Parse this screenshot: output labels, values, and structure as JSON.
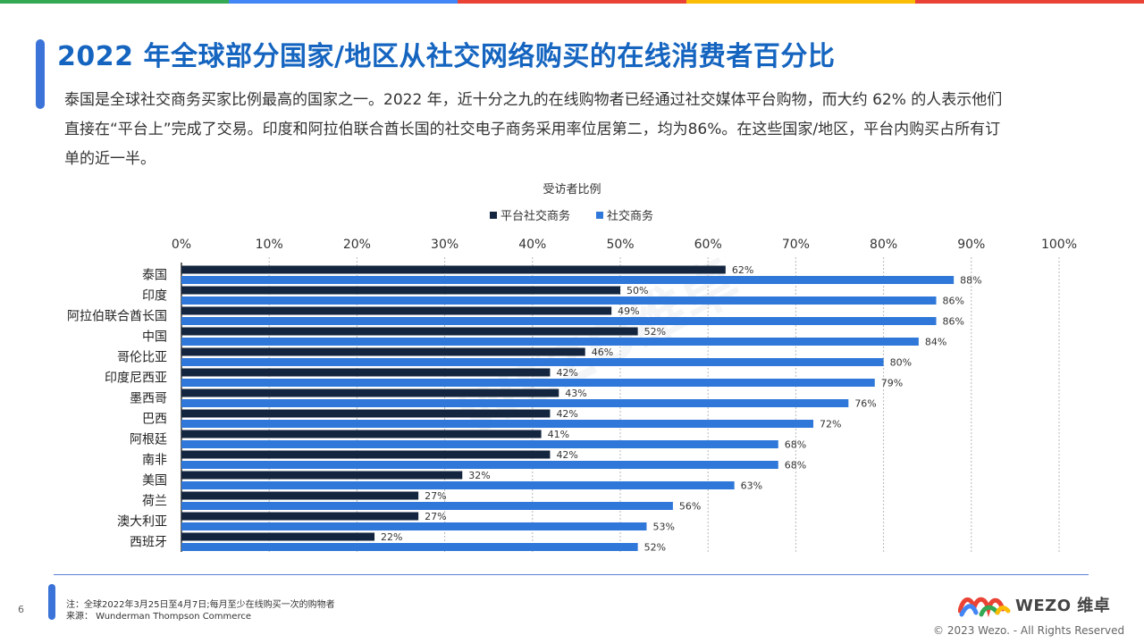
{
  "header": {
    "title": "2022 年全球部分国家/地区从社交网络购买的在线消费者百分比",
    "description": "泰国是全球社交商务买家比例最高的国家之一。2022 年，近十分之九的在线购物者已经通过社交媒体平台购物，而大约 62% 的人表示他们直接在“平台上”完成了交易。印度和阿拉伯联合酋长国的社交电子商务采用率位居第二，均为86%。在这些国家/地区，平台内购买占所有订单的近一半。"
  },
  "colors": {
    "top_bar": [
      "#34a853",
      "#4285f4",
      "#ea4335",
      "#fbbc05",
      "#ea4335"
    ],
    "accent": "#3b73d9",
    "title": "#1565c0",
    "series_dark": "#14263f",
    "series_blue": "#2f78d9"
  },
  "chart_data": {
    "type": "bar",
    "orientation": "horizontal",
    "title": "受访者比例",
    "categories": [
      "泰国",
      "印度",
      "阿拉伯联合酋长国",
      "中国",
      "哥伦比亚",
      "印度尼西亚",
      "墨西哥",
      "巴西",
      "阿根廷",
      "南非",
      "美国",
      "荷兰",
      "澳大利亚",
      "西班牙"
    ],
    "series": [
      {
        "name": "平台社交商务",
        "color": "#14263f",
        "values": [
          62,
          50,
          49,
          52,
          46,
          42,
          43,
          42,
          41,
          42,
          32,
          27,
          27,
          22
        ]
      },
      {
        "name": "社交商务",
        "color": "#2f78d9",
        "values": [
          88,
          86,
          86,
          84,
          80,
          79,
          76,
          72,
          68,
          68,
          63,
          56,
          53,
          52
        ]
      }
    ],
    "x_ticks": [
      "0%",
      "10%",
      "20%",
      "30%",
      "40%",
      "50%",
      "60%",
      "70%",
      "80%",
      "90%",
      "100%"
    ],
    "xlim": [
      0,
      100
    ],
    "value_suffix": "%",
    "legend_position": "top",
    "grid": true
  },
  "footer": {
    "page_number": "6",
    "note": "注：全球2022年3月25日至4月7日;每月至少在线购买一次的购物者",
    "source": "来源： Wunderman Thompson Commerce",
    "brand": "WEZO 维卓",
    "copyright": "© 2023 Wezo. - All Rights Reserved"
  },
  "watermark": "WEZO维卓"
}
